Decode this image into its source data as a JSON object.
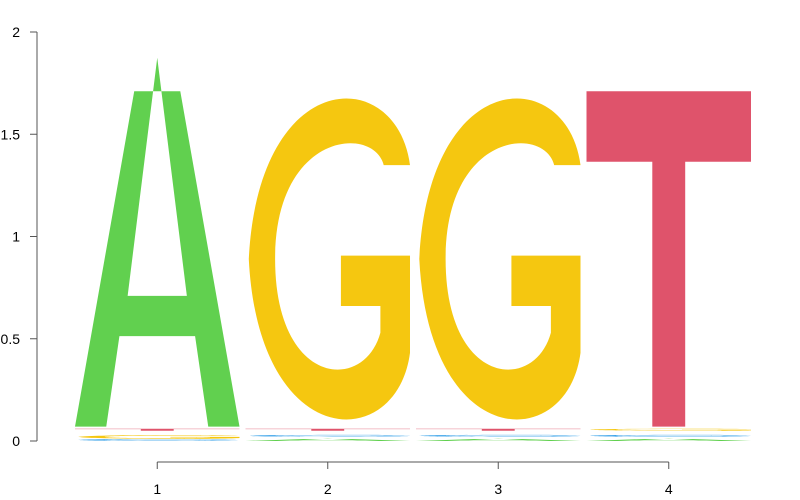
{
  "chart_data": {
    "type": "sequence_logo",
    "title": "",
    "xlabel": "",
    "ylabel": "",
    "ylim": [
      0,
      2
    ],
    "yticks": [
      {
        "value": 0,
        "label": "0"
      },
      {
        "value": 0.5,
        "label": "0.5"
      },
      {
        "value": 1,
        "label": "1"
      },
      {
        "value": 1.5,
        "label": "1.5"
      },
      {
        "value": 2,
        "label": "2"
      }
    ],
    "xticks": [
      {
        "position": 1,
        "label": "1"
      },
      {
        "position": 2,
        "label": "2"
      },
      {
        "position": 3,
        "label": "3"
      },
      {
        "position": 4,
        "label": "4"
      }
    ],
    "colors": {
      "A": "#61d04f",
      "C": "#2297e6",
      "G": "#f5c710",
      "T": "#df536b"
    },
    "positions": [
      {
        "position": 1,
        "letters": [
          {
            "letter": "C",
            "from": 0.0,
            "to": 0.01
          },
          {
            "letter": "G",
            "from": 0.01,
            "to": 0.03
          },
          {
            "letter": "T",
            "from": 0.05,
            "to": 0.06
          },
          {
            "letter": "A",
            "from": 0.07,
            "to": 1.71
          }
        ]
      },
      {
        "position": 2,
        "letters": [
          {
            "letter": "A",
            "from": 0.0,
            "to": 0.01
          },
          {
            "letter": "C",
            "from": 0.02,
            "to": 0.03
          },
          {
            "letter": "T",
            "from": 0.05,
            "to": 0.06
          },
          {
            "letter": "G",
            "from": 0.07,
            "to": 1.71
          }
        ]
      },
      {
        "position": 3,
        "letters": [
          {
            "letter": "A",
            "from": 0.0,
            "to": 0.01
          },
          {
            "letter": "C",
            "from": 0.02,
            "to": 0.03
          },
          {
            "letter": "T",
            "from": 0.05,
            "to": 0.06
          },
          {
            "letter": "G",
            "from": 0.07,
            "to": 1.71
          }
        ]
      },
      {
        "position": 4,
        "letters": [
          {
            "letter": "A",
            "from": 0.0,
            "to": 0.01
          },
          {
            "letter": "C",
            "from": 0.02,
            "to": 0.03
          },
          {
            "letter": "G",
            "from": 0.05,
            "to": 0.06
          },
          {
            "letter": "T",
            "from": 0.07,
            "to": 1.71
          }
        ]
      }
    ]
  }
}
